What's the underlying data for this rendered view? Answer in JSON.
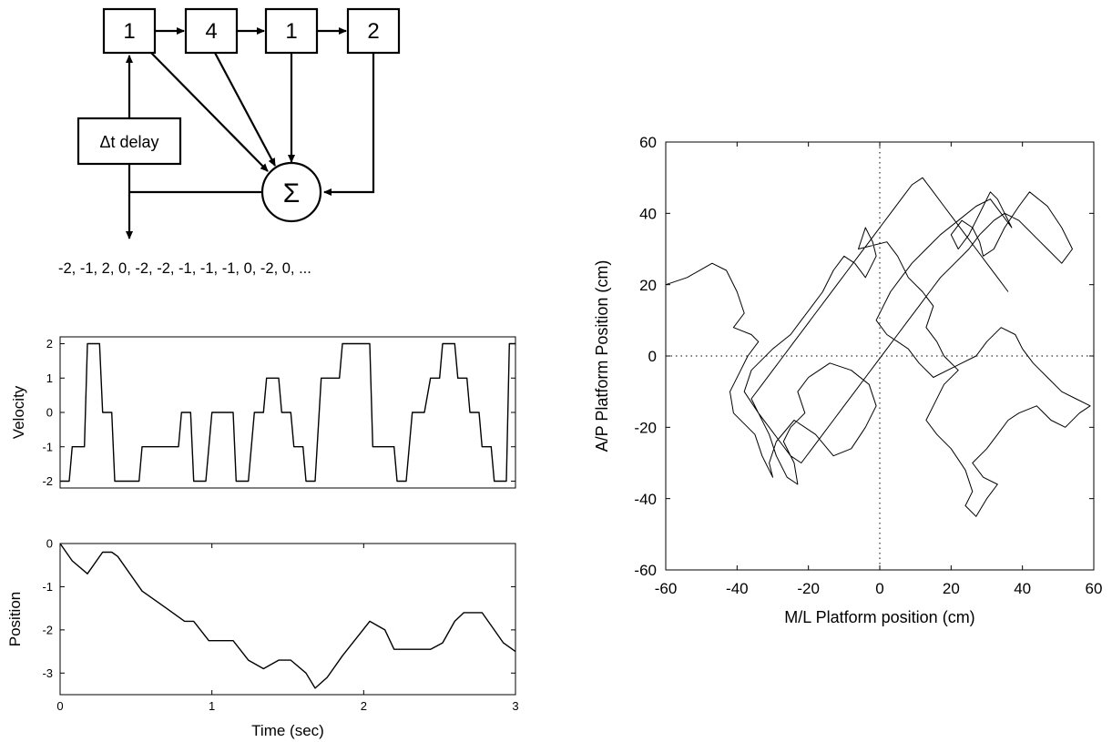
{
  "diagram": {
    "taps": [
      "1",
      "4",
      "1",
      "2"
    ],
    "delay_label": "Δt delay",
    "sum_symbol": "Σ",
    "sequence": "-2, -1, 2, 0, -2, -2, -1, -1, -1, 0, -2, 0, ..."
  },
  "colors": {
    "ink": "#000000",
    "background": "#ffffff"
  },
  "chart_data": [
    {
      "type": "line",
      "ylabel": "Velocity",
      "xlabel": "",
      "xlim": [
        0,
        3
      ],
      "ylim": [
        -2.2,
        2.2
      ],
      "yticks": [
        "-2",
        "-1",
        "0",
        "1",
        "2"
      ],
      "step": true,
      "x": [
        0,
        0.06,
        0.08,
        0.16,
        0.18,
        0.26,
        0.28,
        0.34,
        0.36,
        0.52,
        0.54,
        0.78,
        0.8,
        0.86,
        0.88,
        0.96,
        1.0,
        1.14,
        1.16,
        1.24,
        1.28,
        1.34,
        1.36,
        1.44,
        1.46,
        1.52,
        1.54,
        1.6,
        1.62,
        1.68,
        1.72,
        1.84,
        1.86,
        1.88,
        1.9,
        2.04,
        2.06,
        2.2,
        2.22,
        2.28,
        2.32,
        2.4,
        2.44,
        2.5,
        2.52,
        2.6,
        2.62,
        2.68,
        2.7,
        2.76,
        2.78,
        2.84,
        2.86,
        2.94,
        2.96,
        3.0
      ],
      "y": [
        -2,
        -2,
        -1,
        -1,
        2,
        2,
        0,
        0,
        -2,
        -2,
        -1,
        -1,
        0,
        0,
        -2,
        -2,
        0,
        0,
        -2,
        -2,
        0,
        0,
        1,
        1,
        0,
        0,
        -1,
        -1,
        -2,
        -2,
        1,
        1,
        2,
        2,
        2,
        2,
        -1,
        -1,
        -2,
        -2,
        0,
        0,
        1,
        1,
        2,
        2,
        1,
        1,
        0,
        0,
        -1,
        -1,
        -2,
        -2,
        2,
        2
      ]
    },
    {
      "type": "line",
      "ylabel": "Position",
      "xlabel": "Time (sec)",
      "xlim": [
        0,
        3
      ],
      "ylim": [
        -3.5,
        0
      ],
      "yticks": [
        "0",
        "-1",
        "-2",
        "-3"
      ],
      "xticks": [
        "0",
        "1",
        "2",
        "3"
      ],
      "x": [
        0,
        0.08,
        0.18,
        0.28,
        0.34,
        0.38,
        0.54,
        0.7,
        0.82,
        0.88,
        0.98,
        1.14,
        1.24,
        1.34,
        1.44,
        1.52,
        1.62,
        1.68,
        1.76,
        1.86,
        2.04,
        2.14,
        2.2,
        2.24,
        2.4,
        2.44,
        2.52,
        2.6,
        2.66,
        2.78,
        2.86,
        2.92,
        3.0
      ],
      "y": [
        0,
        -0.4,
        -0.7,
        -0.2,
        -0.2,
        -0.3,
        -1.1,
        -1.5,
        -1.8,
        -1.8,
        -2.25,
        -2.25,
        -2.7,
        -2.9,
        -2.7,
        -2.7,
        -3.0,
        -3.35,
        -3.1,
        -2.6,
        -1.8,
        -2.0,
        -2.45,
        -2.45,
        -2.45,
        -2.45,
        -2.3,
        -1.8,
        -1.6,
        -1.6,
        -2.0,
        -2.3,
        -2.5
      ]
    },
    {
      "type": "line",
      "xlabel": "M/L Platform position (cm)",
      "ylabel": "A/P Platform Position (cm)",
      "xlim": [
        -60,
        60
      ],
      "ylim": [
        -60,
        60
      ],
      "xticks": [
        "-60",
        "-40",
        "-20",
        "0",
        "20",
        "40",
        "60"
      ],
      "yticks": [
        "60",
        "40",
        "20",
        "0",
        "-20",
        "-40",
        "-60"
      ],
      "reference_lines": "dotted at x=0 and y=0",
      "x": [
        -60,
        -54,
        -47,
        -43,
        -40,
        -38,
        -41,
        -36,
        -34,
        -37,
        -39,
        -42,
        -41,
        -35,
        -33,
        -30,
        -31,
        -29,
        -24,
        -18,
        -13,
        -8,
        -4,
        -1,
        -3,
        -8,
        -14,
        -20,
        -23,
        -21,
        -25,
        -27,
        -24,
        -23,
        -26,
        -29,
        -31,
        -34,
        -38,
        -36,
        -30,
        -25,
        -22,
        -19,
        -16,
        -13,
        -10,
        -7,
        -4,
        -1,
        -2,
        -4,
        -6,
        2,
        5,
        8,
        12,
        15,
        13,
        16,
        18,
        22,
        18,
        15,
        13,
        16,
        20,
        24,
        26,
        24,
        27,
        30,
        33,
        29,
        26,
        30,
        33,
        36,
        39,
        44,
        48,
        52,
        56,
        59,
        55,
        51,
        47,
        43,
        40,
        38,
        34,
        30,
        27,
        23,
        19,
        15,
        11,
        8,
        5,
        2,
        -1,
        1,
        3,
        6,
        9,
        13,
        17,
        22,
        27,
        31,
        34,
        37,
        35,
        33,
        31,
        29,
        27,
        25,
        22,
        20,
        23,
        26,
        28,
        29,
        32,
        35,
        39,
        42,
        47,
        51,
        54,
        51,
        47,
        43,
        39,
        35,
        32,
        28,
        25,
        21,
        17,
        14,
        11,
        8,
        5,
        2,
        -1,
        -4,
        -7,
        -10,
        -13,
        -16,
        -19,
        -22,
        -25,
        -28,
        -31,
        -34,
        -36,
        -33,
        -30,
        -27,
        -24,
        -21,
        -18,
        -15,
        -12,
        -9,
        -6,
        -3,
        0,
        3,
        6,
        9,
        12,
        15,
        18,
        21,
        24,
        27,
        30,
        33,
        36
      ],
      "y": [
        20,
        22,
        26,
        24,
        18,
        12,
        8,
        6,
        4,
        0,
        -4,
        -10,
        -16,
        -22,
        -28,
        -34,
        -30,
        -24,
        -18,
        -22,
        -28,
        -26,
        -20,
        -14,
        -8,
        -4,
        -2,
        -6,
        -10,
        -16,
        -20,
        -24,
        -30,
        -36,
        -34,
        -28,
        -22,
        -16,
        -10,
        -4,
        2,
        6,
        10,
        14,
        18,
        24,
        28,
        26,
        22,
        28,
        32,
        36,
        30,
        32,
        28,
        22,
        18,
        14,
        8,
        4,
        0,
        -4,
        -8,
        -14,
        -18,
        -22,
        -26,
        -32,
        -38,
        -42,
        -45,
        -40,
        -36,
        -34,
        -30,
        -26,
        -22,
        -18,
        -16,
        -14,
        -18,
        -20,
        -16,
        -14,
        -12,
        -10,
        -6,
        -2,
        2,
        6,
        8,
        4,
        0,
        -2,
        -4,
        -6,
        -2,
        2,
        4,
        6,
        10,
        14,
        18,
        22,
        26,
        30,
        34,
        38,
        42,
        44,
        40,
        36,
        40,
        44,
        46,
        42,
        38,
        34,
        30,
        34,
        38,
        36,
        32,
        28,
        30,
        36,
        42,
        46,
        42,
        36,
        30,
        26,
        30,
        34,
        38,
        40,
        38,
        34,
        30,
        26,
        22,
        18,
        14,
        10,
        6,
        2,
        -2,
        -6,
        -10,
        -14,
        -18,
        -22,
        -26,
        -30,
        -28,
        -24,
        -20,
        -16,
        -12,
        -8,
        -4,
        0,
        4,
        8,
        12,
        16,
        20,
        24,
        28,
        32,
        36,
        40,
        44,
        48,
        50,
        46,
        42,
        38,
        34,
        30,
        26,
        22,
        18
      ]
    }
  ]
}
